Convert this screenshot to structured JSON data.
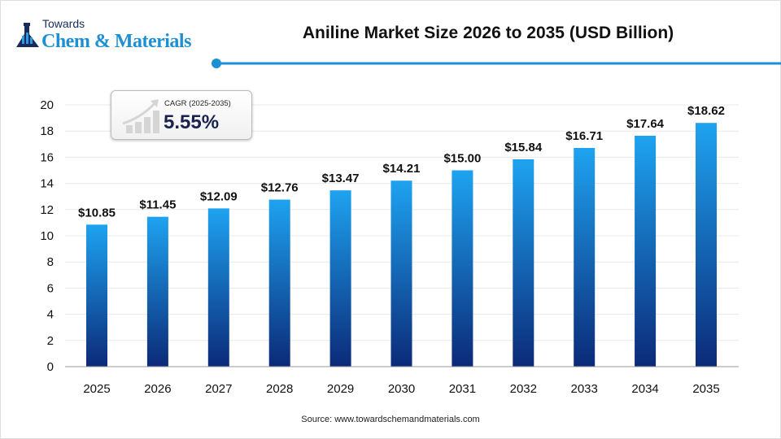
{
  "logo": {
    "line1": "Towards",
    "line2": "Chem & Materials"
  },
  "colors": {
    "bar_top": "#1ea3f0",
    "bar_bottom": "#0b2a78",
    "accent": "#1d8fd3"
  },
  "cagr": {
    "label": "CAGR (2025-2035)",
    "value": "5.55%"
  },
  "source": "Source: www.towardschemandmaterials.com",
  "chart_data": {
    "type": "bar",
    "title": "Aniline Market Size 2026 to 2035 (USD Billion)",
    "categories": [
      "2025",
      "2026",
      "2027",
      "2028",
      "2029",
      "2030",
      "2031",
      "2032",
      "2033",
      "2034",
      "2035"
    ],
    "values": [
      10.85,
      11.45,
      12.09,
      12.76,
      13.47,
      14.21,
      15.0,
      15.84,
      16.71,
      17.64,
      18.62
    ],
    "data_labels": [
      "$10.85",
      "$11.45",
      "$12.09",
      "$12.76",
      "$13.47",
      "$14.21",
      "$15.00",
      "$15.84",
      "$16.71",
      "$17.64",
      "$18.62"
    ],
    "yticks": [
      "0",
      "2",
      "4",
      "6",
      "8",
      "10",
      "12",
      "14",
      "16",
      "18",
      "20"
    ],
    "ylim": [
      0,
      20
    ],
    "grid": true,
    "xlabel": "",
    "ylabel": ""
  }
}
